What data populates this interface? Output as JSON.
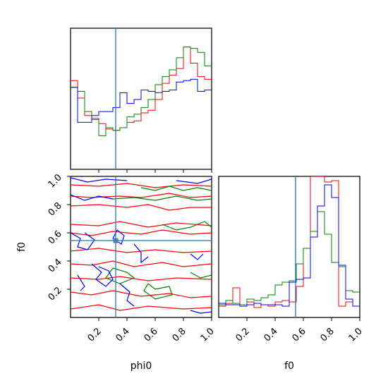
{
  "chart_data": {
    "type": "corner",
    "params": [
      "phi0",
      "f0"
    ],
    "truth": {
      "phi0": 0.32,
      "f0": 0.545
    },
    "series_colors": [
      "#ff0000",
      "#008000",
      "#0000ff"
    ],
    "truth_color": "#1f77b4",
    "panels": [
      {
        "id": "phi0-marginal",
        "type": "step-histogram",
        "param": "phi0",
        "xlim": [
          0,
          1
        ],
        "ylim": [
          0,
          1
        ],
        "bin_edges": [
          0,
          0.05,
          0.1,
          0.15,
          0.2,
          0.25,
          0.3,
          0.35,
          0.4,
          0.45,
          0.5,
          0.55,
          0.6,
          0.65,
          0.7,
          0.75,
          0.8,
          0.85,
          0.9,
          0.95,
          1.0
        ],
        "series": [
          {
            "color": "#ff0000",
            "values": [
              0.66,
              0.53,
              0.4,
              0.38,
              0.34,
              0.3,
              0.29,
              0.31,
              0.35,
              0.36,
              0.42,
              0.44,
              0.52,
              0.64,
              0.7,
              0.75,
              0.91,
              0.79,
              0.69,
              0.67
            ]
          },
          {
            "color": "#008000",
            "values": [
              0.61,
              0.58,
              0.43,
              0.37,
              0.25,
              0.31,
              0.29,
              0.31,
              0.39,
              0.41,
              0.46,
              0.52,
              0.63,
              0.69,
              0.74,
              0.83,
              0.91,
              0.9,
              0.87,
              0.77
            ]
          },
          {
            "color": "#0000ff",
            "values": [
              0.61,
              0.35,
              0.35,
              0.4,
              0.43,
              0.43,
              0.46,
              0.57,
              0.49,
              0.52,
              0.59,
              0.58,
              0.57,
              0.58,
              0.59,
              0.65,
              0.66,
              0.67,
              0.58,
              0.59
            ]
          }
        ]
      },
      {
        "id": "f0-phi0-joint",
        "type": "contour",
        "xparam": "phi0",
        "yparam": "f0",
        "xlim": [
          0,
          1
        ],
        "ylim": [
          0,
          1
        ],
        "xticks": [
          "0.2",
          "0.4",
          "0.6",
          "0.8",
          "1.0"
        ],
        "yticks": [
          "0.2",
          "0.4",
          "0.6",
          "0.8",
          "1.0"
        ],
        "xlabel": "phi0",
        "ylabel": "f0",
        "truth_marker": [
          0.32,
          0.545
        ],
        "contours": [
          {
            "color": "#ff0000",
            "lines": [
              [
                [
                  0.0,
                  0.94
                ],
                [
                  0.2,
                  0.93
                ],
                [
                  0.4,
                  0.95
                ],
                [
                  0.6,
                  0.92
                ],
                [
                  0.8,
                  0.94
                ],
                [
                  1.0,
                  0.93
                ]
              ],
              [
                [
                  0.0,
                  0.86
                ],
                [
                  0.15,
                  0.85
                ],
                [
                  0.35,
                  0.86
                ],
                [
                  0.5,
                  0.85
                ],
                [
                  0.7,
                  0.88
                ],
                [
                  0.85,
                  0.85
                ],
                [
                  1.0,
                  0.86
                ]
              ],
              [
                [
                  0.0,
                  0.79
                ],
                [
                  0.2,
                  0.8
                ],
                [
                  0.4,
                  0.78
                ],
                [
                  0.55,
                  0.8
                ],
                [
                  0.7,
                  0.76
                ],
                [
                  0.85,
                  0.78
                ],
                [
                  1.0,
                  0.78
                ]
              ],
              [
                [
                  0.0,
                  0.66
                ],
                [
                  0.2,
                  0.65
                ],
                [
                  0.35,
                  0.68
                ],
                [
                  0.55,
                  0.64
                ],
                [
                  0.75,
                  0.67
                ],
                [
                  1.0,
                  0.65
                ]
              ],
              [
                [
                  0.0,
                  0.6
                ],
                [
                  0.15,
                  0.58
                ],
                [
                  0.3,
                  0.61
                ],
                [
                  0.5,
                  0.59
                ],
                [
                  0.65,
                  0.62
                ],
                [
                  0.85,
                  0.59
                ],
                [
                  1.0,
                  0.6
                ]
              ],
              [
                [
                  0.0,
                  0.47
                ],
                [
                  0.2,
                  0.49
                ],
                [
                  0.4,
                  0.46
                ],
                [
                  0.6,
                  0.48
                ],
                [
                  0.8,
                  0.46
                ],
                [
                  1.0,
                  0.47
                ]
              ],
              [
                [
                  0.0,
                  0.38
                ],
                [
                  0.15,
                  0.37
                ],
                [
                  0.3,
                  0.4
                ],
                [
                  0.45,
                  0.36
                ],
                [
                  0.65,
                  0.39
                ],
                [
                  0.8,
                  0.36
                ],
                [
                  1.0,
                  0.38
                ]
              ],
              [
                [
                  0.0,
                  0.28
                ],
                [
                  0.2,
                  0.27
                ],
                [
                  0.35,
                  0.29
                ],
                [
                  0.55,
                  0.26
                ],
                [
                  0.75,
                  0.28
                ],
                [
                  1.0,
                  0.27
                ]
              ],
              [
                [
                  0.0,
                  0.18
                ],
                [
                  0.15,
                  0.16
                ],
                [
                  0.3,
                  0.19
                ],
                [
                  0.5,
                  0.15
                ],
                [
                  0.7,
                  0.17
                ],
                [
                  0.85,
                  0.14
                ],
                [
                  1.0,
                  0.15
                ]
              ],
              [
                [
                  0.0,
                  0.06
                ],
                [
                  0.2,
                  0.09
                ],
                [
                  0.35,
                  0.05
                ],
                [
                  0.55,
                  0.08
                ],
                [
                  0.8,
                  0.06
                ],
                [
                  1.0,
                  0.07
                ]
              ]
            ]
          },
          {
            "color": "#008000",
            "lines": [
              [
                [
                  0.5,
                  0.92
                ],
                [
                  0.6,
                  0.9
                ],
                [
                  0.7,
                  0.93
                ],
                [
                  0.8,
                  0.9
                ],
                [
                  0.9,
                  0.92
                ],
                [
                  1.0,
                  0.9
                ]
              ],
              [
                [
                  0.3,
                  0.84
                ],
                [
                  0.45,
                  0.85
                ],
                [
                  0.6,
                  0.83
                ],
                [
                  0.75,
                  0.86
                ],
                [
                  0.9,
                  0.83
                ],
                [
                  1.0,
                  0.84
                ]
              ],
              [
                [
                  0.65,
                  0.66
                ],
                [
                  0.75,
                  0.62
                ],
                [
                  0.85,
                  0.64
                ],
                [
                  0.95,
                  0.68
                ],
                [
                  1.0,
                  0.64
                ]
              ],
              [
                [
                  0.3,
                  0.35
                ],
                [
                  0.4,
                  0.32
                ],
                [
                  0.45,
                  0.28
                ],
                [
                  0.35,
                  0.24
                ],
                [
                  0.25,
                  0.28
                ],
                [
                  0.3,
                  0.35
                ]
              ],
              [
                [
                  0.55,
                  0.24
                ],
                [
                  0.6,
                  0.2
                ],
                [
                  0.7,
                  0.22
                ],
                [
                  0.72,
                  0.16
                ],
                [
                  0.6,
                  0.13
                ],
                [
                  0.52,
                  0.19
                ],
                [
                  0.55,
                  0.24
                ]
              ],
              [
                [
                  0.85,
                  0.32
                ],
                [
                  0.92,
                  0.28
                ],
                [
                  1.0,
                  0.3
                ]
              ]
            ]
          },
          {
            "color": "#0000ff",
            "lines": [
              [
                [
                  0.0,
                  0.99
                ],
                [
                  0.12,
                  0.96
                ],
                [
                  0.25,
                  0.98
                ],
                [
                  0.4,
                  0.97
                ]
              ],
              [
                [
                  0.75,
                  0.97
                ],
                [
                  0.9,
                  0.95
                ],
                [
                  1.0,
                  0.98
                ]
              ],
              [
                [
                  0.0,
                  0.87
                ],
                [
                  0.1,
                  0.83
                ],
                [
                  0.2,
                  0.86
                ],
                [
                  0.3,
                  0.84
                ]
              ],
              [
                [
                  0.0,
                  0.6
                ],
                [
                  0.07,
                  0.56
                ],
                [
                  0.05,
                  0.5
                ],
                [
                  0.12,
                  0.48
                ],
                [
                  0.17,
                  0.55
                ],
                [
                  0.1,
                  0.6
                ]
              ],
              [
                [
                  0.33,
                  0.62
                ],
                [
                  0.38,
                  0.58
                ],
                [
                  0.36,
                  0.52
                ],
                [
                  0.3,
                  0.56
                ],
                [
                  0.33,
                  0.62
                ]
              ],
              [
                [
                  0.45,
                  0.52
                ],
                [
                  0.5,
                  0.46
                ],
                [
                  0.5,
                  0.39
                ],
                [
                  0.55,
                  0.43
                ]
              ],
              [
                [
                  0.15,
                  0.38
                ],
                [
                  0.22,
                  0.32
                ],
                [
                  0.18,
                  0.27
                ],
                [
                  0.25,
                  0.22
                ],
                [
                  0.3,
                  0.27
                ],
                [
                  0.27,
                  0.33
                ],
                [
                  0.2,
                  0.36
                ]
              ],
              [
                [
                  0.05,
                  0.3
                ],
                [
                  0.1,
                  0.22
                ],
                [
                  0.07,
                  0.19
                ]
              ],
              [
                [
                  0.35,
                  0.24
                ],
                [
                  0.42,
                  0.18
                ],
                [
                  0.4,
                  0.12
                ],
                [
                  0.45,
                  0.08
                ]
              ],
              [
                [
                  0.85,
                  0.45
                ],
                [
                  0.9,
                  0.41
                ],
                [
                  0.94,
                  0.45
                ]
              ],
              [
                [
                  0.85,
                  0.05
                ],
                [
                  0.92,
                  0.03
                ],
                [
                  1.0,
                  0.04
                ]
              ]
            ]
          }
        ]
      },
      {
        "id": "f0-marginal",
        "type": "step-histogram",
        "param": "f0",
        "xlim": [
          0,
          1
        ],
        "ylim": [
          0,
          1
        ],
        "xticks": [
          "0.2",
          "0.4",
          "0.6",
          "0.8",
          "1.0"
        ],
        "xlabel": "f0",
        "bin_edges": [
          0,
          0.05,
          0.1,
          0.15,
          0.2,
          0.25,
          0.3,
          0.35,
          0.4,
          0.45,
          0.5,
          0.55,
          0.6,
          0.65,
          0.7,
          0.75,
          0.8,
          0.85,
          0.9,
          0.95,
          1.0
        ],
        "series": [
          {
            "color": "#ff0000",
            "values": [
              0.08,
              0.1,
              0.21,
              0.09,
              0.11,
              0.07,
              0.09,
              0.08,
              0.11,
              0.12,
              0.11,
              0.22,
              0.49,
              1.0,
              1.0,
              0.96,
              0.97,
              0.08,
              0.11,
              0.08
            ]
          },
          {
            "color": "#008000",
            "values": [
              0.09,
              0.12,
              0.1,
              0.09,
              0.13,
              0.12,
              0.14,
              0.16,
              0.23,
              0.25,
              0.26,
              0.38,
              0.49,
              0.61,
              0.75,
              0.59,
              0.39,
              0.36,
              0.19,
              0.18
            ]
          },
          {
            "color": "#0000ff",
            "values": [
              0.1,
              0.09,
              0.09,
              0.08,
              0.09,
              0.1,
              0.09,
              0.09,
              0.09,
              0.08,
              0.25,
              0.27,
              0.28,
              0.57,
              0.79,
              0.94,
              0.85,
              0.37,
              0.13,
              0.08
            ]
          }
        ],
        "truth_value": 0.545
      }
    ]
  }
}
